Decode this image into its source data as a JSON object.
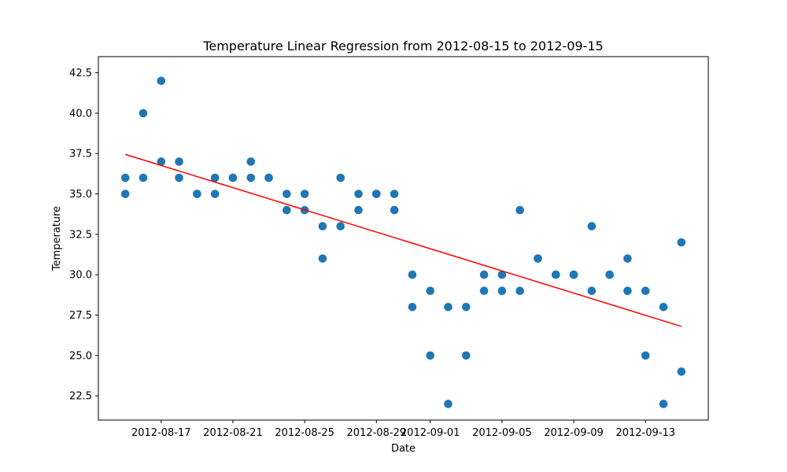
{
  "chart_data": {
    "type": "scatter",
    "title": "Temperature Linear Regression from 2012-08-15 to 2012-09-15",
    "xlabel": "Date",
    "ylabel": "Temperature",
    "xlim": [
      "2012-08-13T12:00",
      "2012-09-16T12:00"
    ],
    "ylim": [
      21.0,
      43.5
    ],
    "xticks": [
      "2012-08-17",
      "2012-08-21",
      "2012-08-25",
      "2012-08-29",
      "2012-09-01",
      "2012-09-05",
      "2012-09-09",
      "2012-09-13"
    ],
    "yticks": [
      "22.5",
      "25.0",
      "27.5",
      "30.0",
      "32.5",
      "35.0",
      "37.5",
      "40.0",
      "42.5"
    ],
    "grid": false,
    "series": [
      {
        "type": "scatter",
        "color": "#1f77b4",
        "points": [
          {
            "x": "2012-08-15",
            "y": 36
          },
          {
            "x": "2012-08-15",
            "y": 35
          },
          {
            "x": "2012-08-16",
            "y": 40
          },
          {
            "x": "2012-08-16",
            "y": 36
          },
          {
            "x": "2012-08-17",
            "y": 42
          },
          {
            "x": "2012-08-17",
            "y": 37
          },
          {
            "x": "2012-08-18",
            "y": 37
          },
          {
            "x": "2012-08-18",
            "y": 36
          },
          {
            "x": "2012-08-19",
            "y": 35
          },
          {
            "x": "2012-08-19",
            "y": 35
          },
          {
            "x": "2012-08-20",
            "y": 36
          },
          {
            "x": "2012-08-20",
            "y": 35
          },
          {
            "x": "2012-08-21",
            "y": 36
          },
          {
            "x": "2012-08-21",
            "y": 36
          },
          {
            "x": "2012-08-22",
            "y": 37
          },
          {
            "x": "2012-08-22",
            "y": 36
          },
          {
            "x": "2012-08-23",
            "y": 36
          },
          {
            "x": "2012-08-23",
            "y": 36
          },
          {
            "x": "2012-08-24",
            "y": 35
          },
          {
            "x": "2012-08-24",
            "y": 34
          },
          {
            "x": "2012-08-25",
            "y": 35
          },
          {
            "x": "2012-08-25",
            "y": 34
          },
          {
            "x": "2012-08-26",
            "y": 33
          },
          {
            "x": "2012-08-26",
            "y": 31
          },
          {
            "x": "2012-08-27",
            "y": 36
          },
          {
            "x": "2012-08-27",
            "y": 33
          },
          {
            "x": "2012-08-28",
            "y": 35
          },
          {
            "x": "2012-08-28",
            "y": 34
          },
          {
            "x": "2012-08-29",
            "y": 35
          },
          {
            "x": "2012-08-29",
            "y": 35
          },
          {
            "x": "2012-08-30",
            "y": 35
          },
          {
            "x": "2012-08-30",
            "y": 34
          },
          {
            "x": "2012-08-31",
            "y": 30
          },
          {
            "x": "2012-08-31",
            "y": 28
          },
          {
            "x": "2012-09-01",
            "y": 29
          },
          {
            "x": "2012-09-01",
            "y": 25
          },
          {
            "x": "2012-09-02",
            "y": 28
          },
          {
            "x": "2012-09-02",
            "y": 22
          },
          {
            "x": "2012-09-03",
            "y": 28
          },
          {
            "x": "2012-09-03",
            "y": 25
          },
          {
            "x": "2012-09-04",
            "y": 30
          },
          {
            "x": "2012-09-04",
            "y": 29
          },
          {
            "x": "2012-09-05",
            "y": 30
          },
          {
            "x": "2012-09-05",
            "y": 29
          },
          {
            "x": "2012-09-06",
            "y": 34
          },
          {
            "x": "2012-09-06",
            "y": 29
          },
          {
            "x": "2012-09-07",
            "y": 31
          },
          {
            "x": "2012-09-07",
            "y": 31
          },
          {
            "x": "2012-09-08",
            "y": 30
          },
          {
            "x": "2012-09-08",
            "y": 30
          },
          {
            "x": "2012-09-09",
            "y": 30
          },
          {
            "x": "2012-09-09",
            "y": 30
          },
          {
            "x": "2012-09-10",
            "y": 33
          },
          {
            "x": "2012-09-10",
            "y": 29
          },
          {
            "x": "2012-09-11",
            "y": 30
          },
          {
            "x": "2012-09-11",
            "y": 30
          },
          {
            "x": "2012-09-12",
            "y": 31
          },
          {
            "x": "2012-09-12",
            "y": 29
          },
          {
            "x": "2012-09-13",
            "y": 29
          },
          {
            "x": "2012-09-13",
            "y": 25
          },
          {
            "x": "2012-09-14",
            "y": 28
          },
          {
            "x": "2012-09-14",
            "y": 22
          },
          {
            "x": "2012-09-15",
            "y": 32
          },
          {
            "x": "2012-09-15",
            "y": 24
          }
        ]
      },
      {
        "type": "line",
        "color": "#ff0000",
        "points": [
          {
            "x": "2012-08-15",
            "y": 37.45
          },
          {
            "x": "2012-09-15",
            "y": 26.8
          }
        ]
      }
    ]
  }
}
